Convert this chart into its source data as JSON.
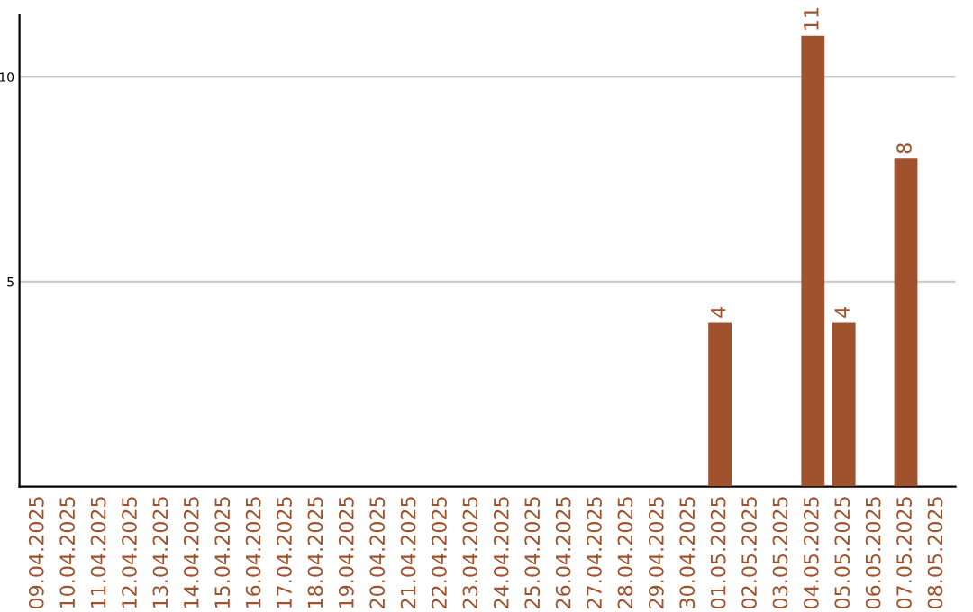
{
  "chart_data": {
    "type": "bar",
    "categories": [
      "09.04.2025",
      "10.04.2025",
      "11.04.2025",
      "12.04.2025",
      "13.04.2025",
      "14.04.2025",
      "15.04.2025",
      "16.04.2025",
      "17.04.2025",
      "18.04.2025",
      "19.04.2025",
      "20.04.2025",
      "21.04.2025",
      "22.04.2025",
      "23.04.2025",
      "24.04.2025",
      "25.04.2025",
      "26.04.2025",
      "27.04.2025",
      "28.04.2025",
      "29.04.2025",
      "30.04.2025",
      "01.05.2025",
      "02.05.2025",
      "03.05.2025",
      "04.05.2025",
      "05.05.2025",
      "06.05.2025",
      "07.05.2025",
      "08.05.2025"
    ],
    "values": [
      0,
      0,
      0,
      0,
      0,
      0,
      0,
      0,
      0,
      0,
      0,
      0,
      0,
      0,
      0,
      0,
      0,
      0,
      0,
      0,
      0,
      0,
      4,
      0,
      0,
      11,
      4,
      0,
      8,
      0
    ],
    "value_labels": [
      null,
      null,
      null,
      null,
      null,
      null,
      null,
      null,
      null,
      null,
      null,
      null,
      null,
      null,
      null,
      null,
      null,
      null,
      null,
      null,
      null,
      null,
      "4",
      null,
      null,
      "11",
      "4",
      null,
      "8",
      null
    ],
    "color": "#a0522d",
    "ylim": [
      0,
      11.5
    ],
    "yticks": [
      5,
      10
    ],
    "grid": "y",
    "legend": false
  }
}
